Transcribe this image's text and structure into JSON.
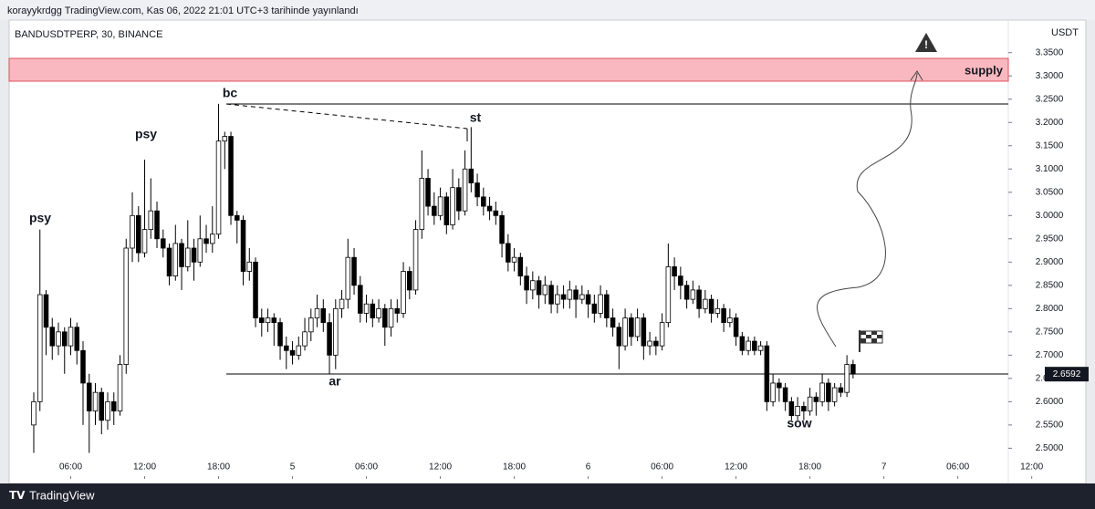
{
  "header": {
    "text": "korayykrdgg TradingView.com, Kas 06, 2022 21:01 UTC+3 tarihinde yayınlandı"
  },
  "footer": {
    "brand": "TradingView"
  },
  "chart_data": {
    "type": "candlestick",
    "title": "BANDUSDTPERP, 30, BINANCE",
    "y_axis_label": "USDT",
    "annotations": [
      "psy",
      "psy",
      "bc",
      "st",
      "ar",
      "sow",
      "supply"
    ],
    "up_color": "#ffffff",
    "down_color": "#000000",
    "candles": [
      [
        2.55,
        2.62,
        2.49,
        2.6
      ],
      [
        2.6,
        2.97,
        2.58,
        2.83
      ],
      [
        2.83,
        2.84,
        2.7,
        2.76
      ],
      [
        2.76,
        2.78,
        2.69,
        2.72
      ],
      [
        2.72,
        2.77,
        2.7,
        2.75
      ],
      [
        2.75,
        2.76,
        2.66,
        2.72
      ],
      [
        2.72,
        2.78,
        2.7,
        2.76
      ],
      [
        2.76,
        2.77,
        2.68,
        2.71
      ],
      [
        2.71,
        2.73,
        2.55,
        2.64
      ],
      [
        2.64,
        2.66,
        2.49,
        2.58
      ],
      [
        2.58,
        2.64,
        2.55,
        2.62
      ],
      [
        2.62,
        2.63,
        2.53,
        2.56
      ],
      [
        2.56,
        2.62,
        2.54,
        2.6
      ],
      [
        2.6,
        2.62,
        2.55,
        2.58
      ],
      [
        2.58,
        2.7,
        2.57,
        2.68
      ],
      [
        2.68,
        2.95,
        2.66,
        2.93
      ],
      [
        2.93,
        3.05,
        2.9,
        3.0
      ],
      [
        3.0,
        3.02,
        2.9,
        2.92
      ],
      [
        2.92,
        3.12,
        2.91,
        2.97
      ],
      [
        2.97,
        3.08,
        2.95,
        3.01
      ],
      [
        3.01,
        3.03,
        2.93,
        2.95
      ],
      [
        2.95,
        2.97,
        2.91,
        2.93
      ],
      [
        2.93,
        2.94,
        2.85,
        2.87
      ],
      [
        2.87,
        2.98,
        2.86,
        2.94
      ],
      [
        2.94,
        2.95,
        2.84,
        2.89
      ],
      [
        2.89,
        2.99,
        2.88,
        2.93
      ],
      [
        2.93,
        2.95,
        2.86,
        2.9
      ],
      [
        2.9,
        3.0,
        2.89,
        2.95
      ],
      [
        2.95,
        2.98,
        2.92,
        2.94
      ],
      [
        2.94,
        3.02,
        2.92,
        2.96
      ],
      [
        2.96,
        3.24,
        2.95,
        3.16
      ],
      [
        3.16,
        3.18,
        3.1,
        3.17
      ],
      [
        3.17,
        3.18,
        2.98,
        3.0
      ],
      [
        3.0,
        3.01,
        2.94,
        2.99
      ],
      [
        2.99,
        3.0,
        2.85,
        2.88
      ],
      [
        2.88,
        2.93,
        2.86,
        2.9
      ],
      [
        2.9,
        2.91,
        2.76,
        2.78
      ],
      [
        2.78,
        2.8,
        2.74,
        2.77
      ],
      [
        2.77,
        2.8,
        2.75,
        2.78
      ],
      [
        2.78,
        2.79,
        2.72,
        2.77
      ],
      [
        2.77,
        2.78,
        2.69,
        2.72
      ],
      [
        2.72,
        2.74,
        2.67,
        2.71
      ],
      [
        2.71,
        2.73,
        2.68,
        2.7
      ],
      [
        2.7,
        2.74,
        2.69,
        2.72
      ],
      [
        2.72,
        2.78,
        2.71,
        2.75
      ],
      [
        2.75,
        2.8,
        2.73,
        2.78
      ],
      [
        2.78,
        2.83,
        2.76,
        2.8
      ],
      [
        2.8,
        2.82,
        2.75,
        2.77
      ],
      [
        2.77,
        2.79,
        2.66,
        2.7
      ],
      [
        2.7,
        2.82,
        2.67,
        2.8
      ],
      [
        2.8,
        2.84,
        2.78,
        2.82
      ],
      [
        2.82,
        2.95,
        2.8,
        2.91
      ],
      [
        2.91,
        2.93,
        2.83,
        2.85
      ],
      [
        2.85,
        2.87,
        2.77,
        2.79
      ],
      [
        2.79,
        2.83,
        2.77,
        2.81
      ],
      [
        2.81,
        2.82,
        2.76,
        2.78
      ],
      [
        2.78,
        2.82,
        2.77,
        2.8
      ],
      [
        2.8,
        2.81,
        2.72,
        2.76
      ],
      [
        2.76,
        2.82,
        2.74,
        2.8
      ],
      [
        2.8,
        2.82,
        2.77,
        2.79
      ],
      [
        2.79,
        2.9,
        2.78,
        2.88
      ],
      [
        2.88,
        2.89,
        2.82,
        2.84
      ],
      [
        2.84,
        2.99,
        2.83,
        2.97
      ],
      [
        2.97,
        3.14,
        2.95,
        3.08
      ],
      [
        3.08,
        3.1,
        3.0,
        3.02
      ],
      [
        3.02,
        3.05,
        2.98,
        3.0
      ],
      [
        3.0,
        3.06,
        2.99,
        3.04
      ],
      [
        3.04,
        3.05,
        2.96,
        2.98
      ],
      [
        2.98,
        3.1,
        2.97,
        3.06
      ],
      [
        3.06,
        3.08,
        2.99,
        3.01
      ],
      [
        3.01,
        3.14,
        3.0,
        3.1
      ],
      [
        3.1,
        3.19,
        3.05,
        3.07
      ],
      [
        3.07,
        3.09,
        3.02,
        3.04
      ],
      [
        3.04,
        3.06,
        3.0,
        3.02
      ],
      [
        3.02,
        3.04,
        2.99,
        3.01
      ],
      [
        3.01,
        3.03,
        2.98,
        3.0
      ],
      [
        3.0,
        3.01,
        2.91,
        2.94
      ],
      [
        2.94,
        2.96,
        2.88,
        2.9
      ],
      [
        2.9,
        2.93,
        2.88,
        2.91
      ],
      [
        2.91,
        2.92,
        2.85,
        2.87
      ],
      [
        2.87,
        2.89,
        2.81,
        2.84
      ],
      [
        2.84,
        2.88,
        2.82,
        2.86
      ],
      [
        2.86,
        2.87,
        2.8,
        2.83
      ],
      [
        2.83,
        2.87,
        2.81,
        2.85
      ],
      [
        2.85,
        2.86,
        2.79,
        2.81
      ],
      [
        2.81,
        2.85,
        2.79,
        2.83
      ],
      [
        2.83,
        2.85,
        2.8,
        2.82
      ],
      [
        2.82,
        2.86,
        2.8,
        2.84
      ],
      [
        2.84,
        2.85,
        2.78,
        2.82
      ],
      [
        2.82,
        2.85,
        2.81,
        2.83
      ],
      [
        2.83,
        2.84,
        2.78,
        2.81
      ],
      [
        2.81,
        2.83,
        2.77,
        2.79
      ],
      [
        2.79,
        2.85,
        2.78,
        2.83
      ],
      [
        2.83,
        2.84,
        2.76,
        2.78
      ],
      [
        2.78,
        2.8,
        2.74,
        2.76
      ],
      [
        2.76,
        2.77,
        2.67,
        2.72
      ],
      [
        2.72,
        2.8,
        2.71,
        2.78
      ],
      [
        2.78,
        2.79,
        2.72,
        2.74
      ],
      [
        2.74,
        2.8,
        2.73,
        2.78
      ],
      [
        2.78,
        2.79,
        2.69,
        2.72
      ],
      [
        2.72,
        2.75,
        2.7,
        2.73
      ],
      [
        2.73,
        2.74,
        2.7,
        2.72
      ],
      [
        2.72,
        2.79,
        2.71,
        2.77
      ],
      [
        2.77,
        2.94,
        2.76,
        2.89
      ],
      [
        2.89,
        2.91,
        2.84,
        2.87
      ],
      [
        2.87,
        2.89,
        2.82,
        2.85
      ],
      [
        2.85,
        2.86,
        2.8,
        2.82
      ],
      [
        2.82,
        2.86,
        2.81,
        2.84
      ],
      [
        2.84,
        2.85,
        2.78,
        2.8
      ],
      [
        2.8,
        2.84,
        2.79,
        2.82
      ],
      [
        2.82,
        2.83,
        2.77,
        2.79
      ],
      [
        2.79,
        2.82,
        2.78,
        2.8
      ],
      [
        2.8,
        2.81,
        2.75,
        2.77
      ],
      [
        2.77,
        2.8,
        2.76,
        2.78
      ],
      [
        2.78,
        2.79,
        2.72,
        2.74
      ],
      [
        2.74,
        2.75,
        2.7,
        2.71
      ],
      [
        2.71,
        2.74,
        2.7,
        2.73
      ],
      [
        2.73,
        2.74,
        2.7,
        2.71
      ],
      [
        2.71,
        2.73,
        2.7,
        2.72
      ],
      [
        2.72,
        2.73,
        2.58,
        2.6
      ],
      [
        2.6,
        2.66,
        2.59,
        2.64
      ],
      [
        2.64,
        2.65,
        2.6,
        2.63
      ],
      [
        2.63,
        2.64,
        2.58,
        2.6
      ],
      [
        2.6,
        2.61,
        2.56,
        2.57
      ],
      [
        2.57,
        2.61,
        2.56,
        2.59
      ],
      [
        2.59,
        2.6,
        2.56,
        2.58
      ],
      [
        2.58,
        2.63,
        2.57,
        2.61
      ],
      [
        2.61,
        2.62,
        2.57,
        2.6
      ],
      [
        2.6,
        2.66,
        2.59,
        2.64
      ],
      [
        2.64,
        2.65,
        2.58,
        2.6
      ],
      [
        2.6,
        2.64,
        2.59,
        2.63
      ],
      [
        2.63,
        2.64,
        2.61,
        2.62
      ],
      [
        2.62,
        2.7,
        2.61,
        2.68
      ],
      [
        2.68,
        2.69,
        2.65,
        2.6592
      ]
    ],
    "xlim": [
      -4,
      158.2
    ],
    "xticks": [
      {
        "value": 6,
        "label": "06:00"
      },
      {
        "value": 18,
        "label": "12:00"
      },
      {
        "value": 30,
        "label": "18:00"
      },
      {
        "value": 42,
        "label": "5"
      },
      {
        "value": 54,
        "label": "06:00"
      },
      {
        "value": 66,
        "label": "12:00"
      },
      {
        "value": 78,
        "label": "18:00"
      },
      {
        "value": 90,
        "label": "6"
      },
      {
        "value": 102,
        "label": "06:00"
      },
      {
        "value": 114,
        "label": "12:00"
      },
      {
        "value": 126,
        "label": "18:00"
      },
      {
        "value": 138,
        "label": "7"
      },
      {
        "value": 150,
        "label": "06:00"
      },
      {
        "value": 162,
        "label": "12:00"
      }
    ],
    "ylim": [
      2.44,
      3.42
    ],
    "yticks": [
      {
        "value": 2.5,
        "label": "2.5000"
      },
      {
        "value": 2.55,
        "label": "2.5500"
      },
      {
        "value": 2.6,
        "label": "2.6000"
      },
      {
        "value": 2.65,
        "label": "2.6500"
      },
      {
        "value": 2.7,
        "label": "2.7000"
      },
      {
        "value": 2.75,
        "label": "2.7500"
      },
      {
        "value": 2.8,
        "label": "2.8000"
      },
      {
        "value": 2.85,
        "label": "2.8500"
      },
      {
        "value": 2.9,
        "label": "2.9000"
      },
      {
        "value": 2.95,
        "label": "2.9500"
      },
      {
        "value": 3.0,
        "label": "3.0000"
      },
      {
        "value": 3.05,
        "label": "3.0500"
      },
      {
        "value": 3.1,
        "label": "3.1000"
      },
      {
        "value": 3.15,
        "label": "3.1500"
      },
      {
        "value": 3.2,
        "label": "3.2000"
      },
      {
        "value": 3.25,
        "label": "3.2500"
      },
      {
        "value": 3.3,
        "label": "3.3000"
      },
      {
        "value": 3.35,
        "label": "3.3500"
      }
    ]
  }
}
